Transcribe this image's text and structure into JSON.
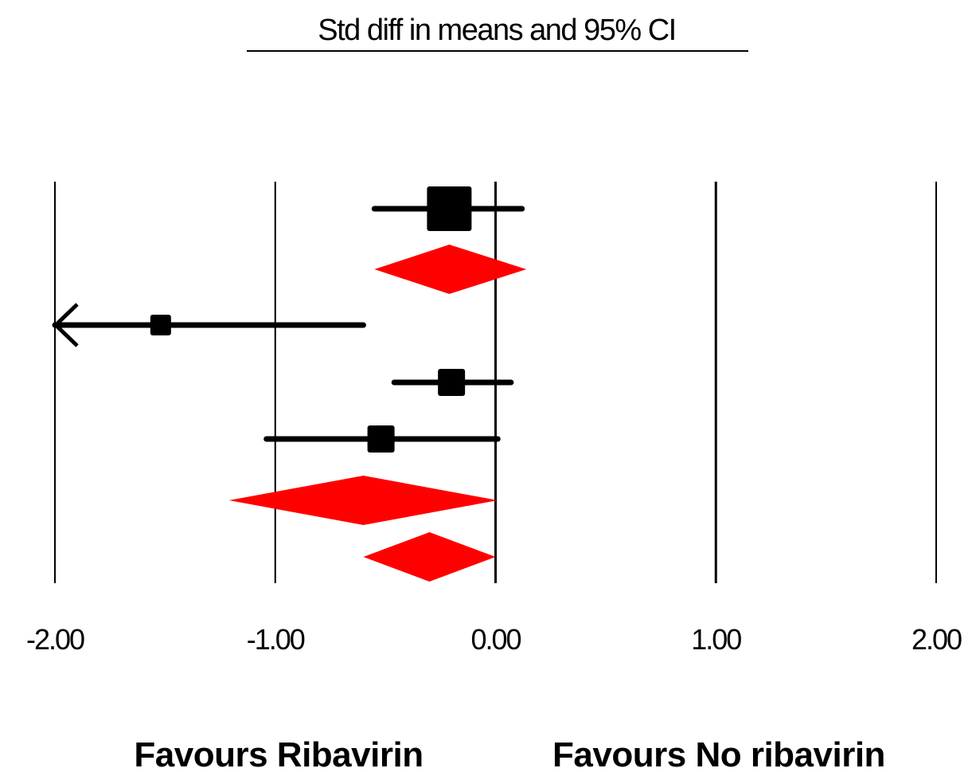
{
  "chart_data": {
    "type": "forest",
    "title": "Std diff in means and 95% CI",
    "xlim": [
      -2,
      2
    ],
    "x_ticks": [
      -2,
      -1,
      0,
      1,
      2
    ],
    "x_tick_labels": [
      "-2.00",
      "-1.00",
      "0.00",
      "1.00",
      "2.00"
    ],
    "gridlines": "vertical at ticks",
    "favours_left": "Favours Ribavirin",
    "favours_right": "Favours No ribavirin",
    "rows": [
      {
        "kind": "study",
        "estimate": -0.21,
        "lower": -0.55,
        "upper": 0.12,
        "weight": "large"
      },
      {
        "kind": "summary",
        "estimate": -0.21,
        "lower": -0.55,
        "upper": 0.14,
        "color": "#ff0000"
      },
      {
        "kind": "study",
        "estimate": -1.52,
        "lower": -2.0,
        "upper": -0.6,
        "weight": "small",
        "truncated_lower": true
      },
      {
        "kind": "study",
        "estimate": -0.2,
        "lower": -0.46,
        "upper": 0.07,
        "weight": "medium"
      },
      {
        "kind": "study",
        "estimate": -0.52,
        "lower": -1.04,
        "upper": 0.01,
        "weight": "medium"
      },
      {
        "kind": "summary",
        "estimate": -0.6,
        "lower": -1.21,
        "upper": 0.01,
        "color": "#ff0000"
      },
      {
        "kind": "summary",
        "estimate": -0.3,
        "lower": -0.6,
        "upper": 0.0,
        "color": "#ff0000"
      }
    ]
  }
}
